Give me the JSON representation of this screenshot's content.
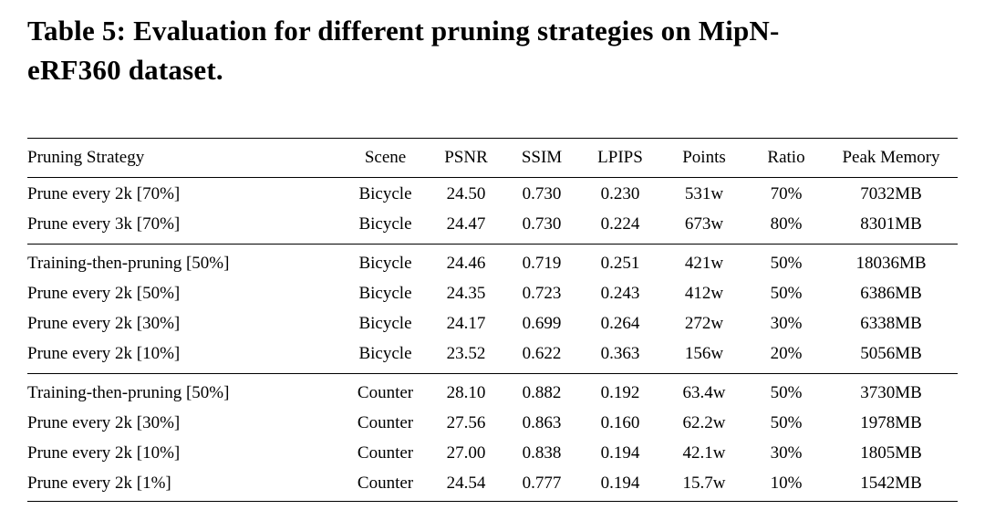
{
  "caption": {
    "line1": "Table 5: Evaluation for different pruning strategies on MipN-",
    "line2": "eRF360 dataset."
  },
  "table": {
    "columns": [
      "Pruning Strategy",
      "Scene",
      "PSNR",
      "SSIM",
      "LPIPS",
      "Points",
      "Ratio",
      "Peak Memory"
    ],
    "groups": [
      {
        "rows": [
          [
            "Prune every 2k [70%]",
            "Bicycle",
            "24.50",
            "0.730",
            "0.230",
            "531w",
            "70%",
            "7032MB"
          ],
          [
            "Prune every 3k [70%]",
            "Bicycle",
            "24.47",
            "0.730",
            "0.224",
            "673w",
            "80%",
            "8301MB"
          ]
        ]
      },
      {
        "rows": [
          [
            "Training-then-pruning [50%]",
            "Bicycle",
            "24.46",
            "0.719",
            "0.251",
            "421w",
            "50%",
            "18036MB"
          ],
          [
            "Prune every 2k [50%]",
            "Bicycle",
            "24.35",
            "0.723",
            "0.243",
            "412w",
            "50%",
            "6386MB"
          ],
          [
            "Prune every 2k [30%]",
            "Bicycle",
            "24.17",
            "0.699",
            "0.264",
            "272w",
            "30%",
            "6338MB"
          ],
          [
            "Prune every 2k [10%]",
            "Bicycle",
            "23.52",
            "0.622",
            "0.363",
            "156w",
            "20%",
            "5056MB"
          ]
        ]
      },
      {
        "rows": [
          [
            "Training-then-pruning [50%]",
            "Counter",
            "28.10",
            "0.882",
            "0.192",
            "63.4w",
            "50%",
            "3730MB"
          ],
          [
            "Prune every 2k [30%]",
            "Counter",
            "27.56",
            "0.863",
            "0.160",
            "62.2w",
            "50%",
            "1978MB"
          ],
          [
            "Prune every 2k [10%]",
            "Counter",
            "27.00",
            "0.838",
            "0.194",
            "42.1w",
            "30%",
            "1805MB"
          ],
          [
            "Prune every 2k [1%]",
            "Counter",
            "24.54",
            "0.777",
            "0.194",
            "15.7w",
            "10%",
            "1542MB"
          ]
        ]
      }
    ]
  },
  "colors": {
    "background": "#ffffff",
    "text": "#000000",
    "rule": "#000000"
  }
}
